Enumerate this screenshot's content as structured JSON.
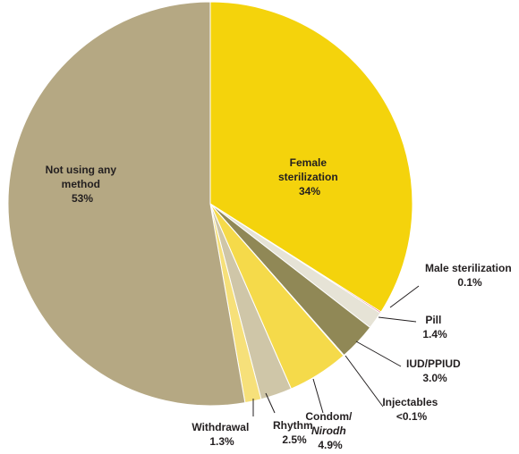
{
  "chart_data": {
    "type": "pie",
    "title": "",
    "start_angle_deg": 0,
    "direction": "clockwise",
    "slices": [
      {
        "label_lines": [
          "Female",
          "sterilization",
          "34%"
        ],
        "value": 34.0,
        "color": "#f4d30c"
      },
      {
        "label_lines": [
          "Male sterilization",
          "0.1%"
        ],
        "value": 0.1,
        "color": "#c8102e"
      },
      {
        "label_lines": [
          "Pill",
          "1.4%"
        ],
        "value": 1.4,
        "color": "#e6e3d6"
      },
      {
        "label_lines": [
          "IUD/PPIUD",
          "3.0%"
        ],
        "value": 3.0,
        "color": "#908856"
      },
      {
        "label_lines": [
          "Injectables",
          "<0.1%"
        ],
        "value": 0.05,
        "color": "#5a5a3a"
      },
      {
        "label_lines": [
          "Condom/",
          "Nirodh",
          "4.9%"
        ],
        "value": 4.9,
        "color": "#f5da4a"
      },
      {
        "label_lines": [
          "Rhythm",
          "2.5%"
        ],
        "value": 2.5,
        "color": "#cfc6a8"
      },
      {
        "label_lines": [
          "Withdrawal",
          "1.3%"
        ],
        "value": 1.3,
        "color": "#f6e07a"
      },
      {
        "label_lines": [
          "Not using any",
          "method",
          "53%"
        ],
        "value": 52.75,
        "color": "#b5a883"
      }
    ]
  }
}
